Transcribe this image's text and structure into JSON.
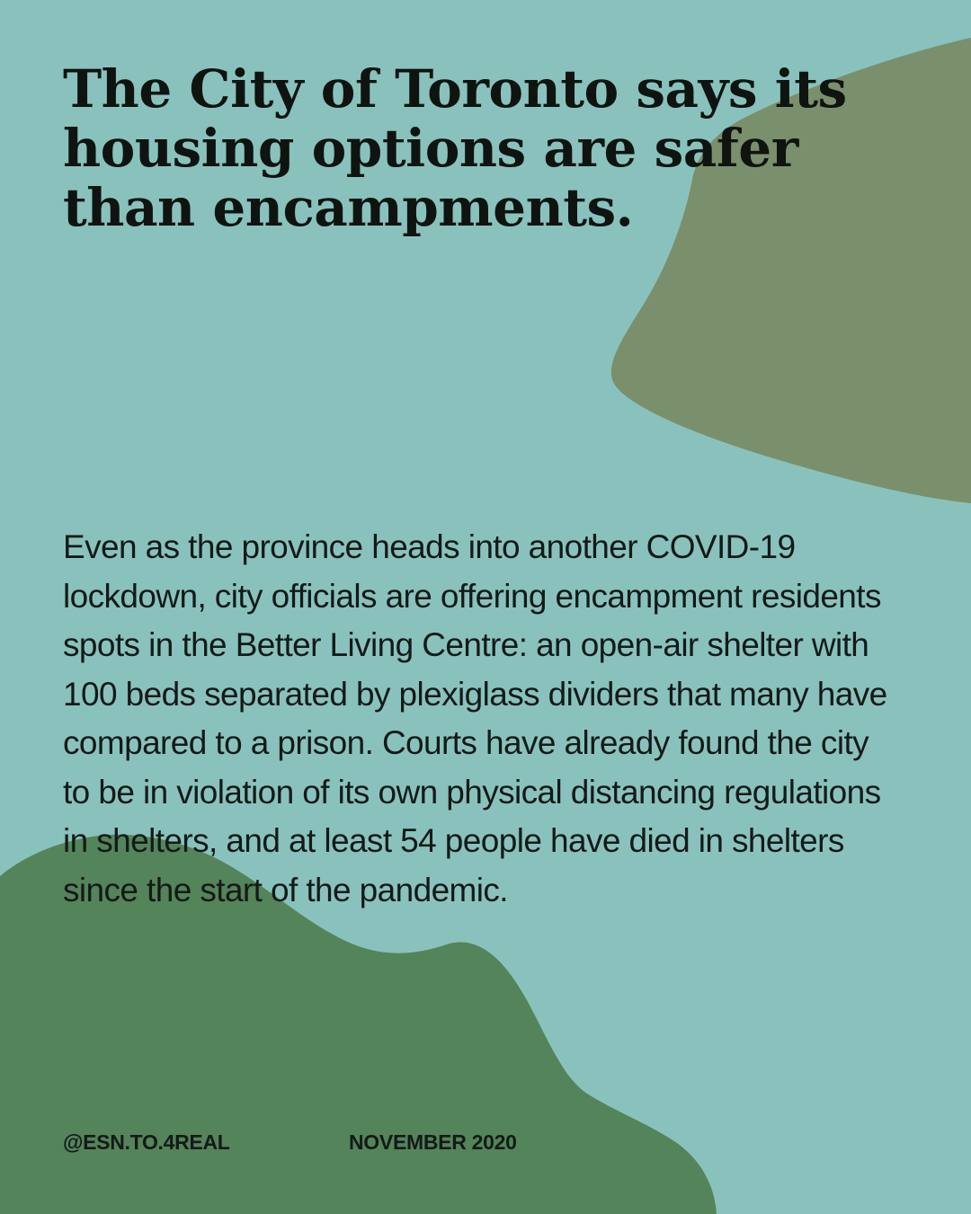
{
  "headline": "The City of Toronto says its housing options are safer than encampments.",
  "body": "Even as the province heads into another COVID-19 lockdown, city officials are offering encampment residents spots in the Better Living Centre: an open-air shelter with 100 beds separated by plexiglass dividers that many have compared to a prison. Courts have already found the city to be in violation of its own physical distancing regulations in shelters, and at least 54 people have died in shelters since the start of the pandemic.",
  "footer": {
    "handle": "@ESN.TO.4REAL",
    "date": "NOVEMBER 2020"
  },
  "colors": {
    "background": "#89c2bd",
    "blob_top_right": "#7a8f6b",
    "blob_bottom_left": "#54845a",
    "text": "#141a18"
  }
}
